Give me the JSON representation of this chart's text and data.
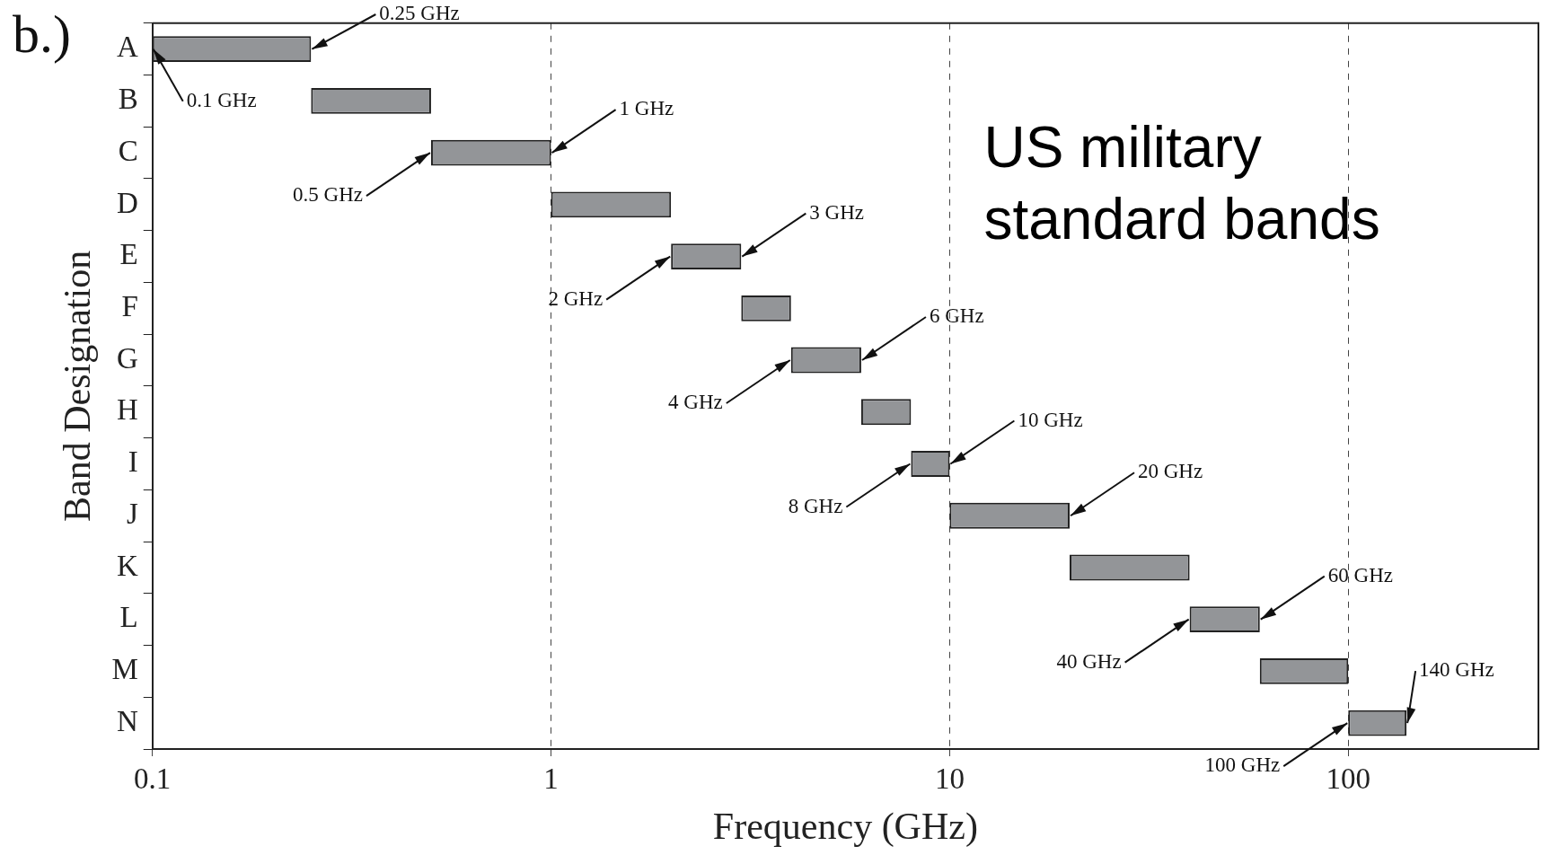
{
  "chart_data": {
    "type": "bar",
    "orientation": "horizontal",
    "title": "b.)",
    "xlabel": "Frequency (GHz)",
    "ylabel": "Band Designation",
    "categories": [
      "A",
      "B",
      "C",
      "D",
      "E",
      "F",
      "G",
      "H",
      "I",
      "J",
      "K",
      "L",
      "M",
      "N"
    ],
    "base": [
      0.1,
      0.25,
      0.5,
      1,
      2,
      3,
      4,
      6,
      8,
      10,
      20,
      40,
      60,
      100
    ],
    "values": [
      0.15,
      0.25,
      0.5,
      1,
      1,
      1,
      2,
      2,
      2,
      10,
      20,
      20,
      40,
      40
    ],
    "color": "#939598",
    "log": "x",
    "xlim": [
      0.1,
      300
    ],
    "xticks": [
      0.1,
      1,
      10,
      100
    ],
    "grid": "x",
    "line_style": "dashed",
    "legend": false,
    "annotations": [
      "US military standard bands",
      {
        "text": "0.1 GHz",
        "x": 0.1,
        "y": "A"
      },
      {
        "text": "0.25 GHz",
        "x": 0.25,
        "y": "A"
      },
      {
        "text": "0.5 GHz",
        "x": 0.5,
        "y": "C"
      },
      {
        "text": "1 GHz",
        "x": 1,
        "y": "C"
      },
      {
        "text": "2 GHz",
        "x": 2,
        "y": "E"
      },
      {
        "text": "3 GHz",
        "x": 3,
        "y": "E"
      },
      {
        "text": "4 GHz",
        "x": 4,
        "y": "G"
      },
      {
        "text": "6 GHz",
        "x": 6,
        "y": "G"
      },
      {
        "text": "8 GHz",
        "x": 8,
        "y": "I"
      },
      {
        "text": "10 GHz",
        "x": 10,
        "y": "I"
      },
      {
        "text": "20 GHz",
        "x": 20,
        "y": "J"
      },
      {
        "text": "40 GHz",
        "x": 40,
        "y": "L"
      },
      {
        "text": "60 GHz",
        "x": 60,
        "y": "L"
      },
      {
        "text": "100 GHz",
        "x": 100,
        "y": "N"
      },
      {
        "text": "140 GHz",
        "x": 140,
        "y": "N"
      }
    ]
  }
}
